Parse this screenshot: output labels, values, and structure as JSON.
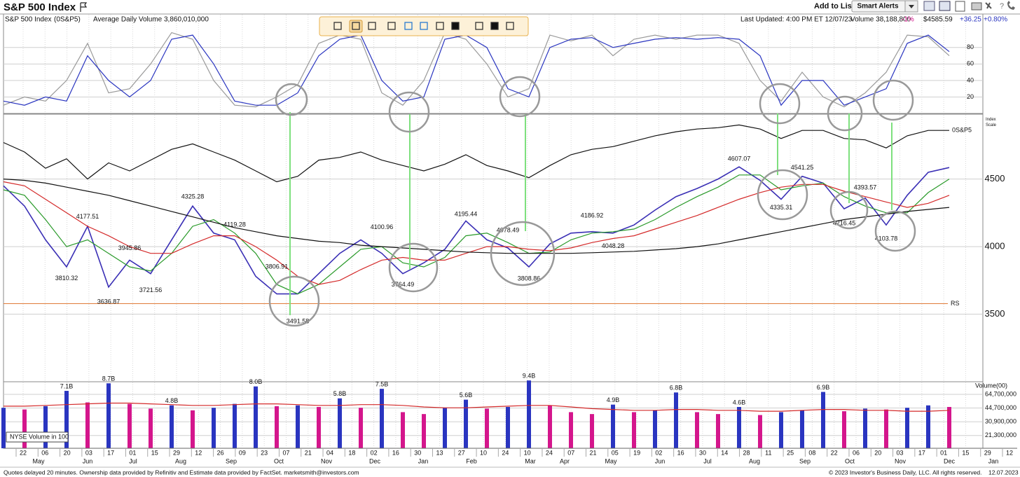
{
  "header": {
    "title": "S&P 500 Index",
    "add_to_list": "Add to List:",
    "button": "Smart Alerts"
  },
  "info_bar": {
    "symbol": "S&P 500 Index",
    "code": "(0S&P5)",
    "avg_volume": "Average Daily Volume 3,860,010,000",
    "updated": "Last Updated: 4:00 PM ET 12/07/23",
    "volume": "Volume 38,188,800",
    "pct_flag": "-1%",
    "price": "$4585.59",
    "change": "+36.25",
    "change_pct": "+0.80%"
  },
  "footer": {
    "left": "Quotes delayed 20 minutes. Ownership data provided by Refinitiv and Estimate data provided by FactSet. marketsmith@investors.com",
    "right": "© 2023 Investor's Business Daily, LLC. All rights reserved.",
    "date": "12.07.2023"
  },
  "x_axis": {
    "days": [
      "22",
      "06",
      "20",
      "03",
      "17",
      "01",
      "15",
      "29",
      "12",
      "26",
      "09",
      "23",
      "07",
      "21",
      "04",
      "18",
      "02",
      "16",
      "30",
      "13",
      "27",
      "10",
      "24",
      "10",
      "24",
      "07",
      "21",
      "05",
      "19",
      "02",
      "16",
      "30",
      "14",
      "28",
      "11",
      "25",
      "08",
      "22",
      "06",
      "20",
      "03",
      "17",
      "01",
      "15",
      "29",
      "12"
    ],
    "months": [
      "May",
      "Jun",
      "Jul",
      "Aug",
      "Sep",
      "Oct",
      "Nov",
      "Dec",
      "Jan",
      "Feb",
      "Mar",
      "Apr",
      "May",
      "Jun",
      "Jul",
      "Aug",
      "Sep",
      "Oct",
      "Nov",
      "Dec",
      "Jan"
    ]
  },
  "chart_data": [
    {
      "type": "line",
      "ylim": [
        0,
        107
      ],
      "yticks": [
        20,
        40,
        60,
        80
      ],
      "grid": true,
      "series": [
        {
          "color": "#9a9a9a",
          "values": [
            10,
            20,
            15,
            40,
            85,
            25,
            30,
            60,
            98,
            90,
            40,
            10,
            8,
            20,
            35,
            85,
            95,
            90,
            25,
            10,
            40,
            98,
            90,
            60,
            20,
            30,
            95,
            88,
            95,
            70,
            90,
            95,
            90,
            95,
            95,
            85,
            40,
            15,
            50,
            20,
            8,
            25,
            50,
            95,
            93,
            70
          ]
        },
        {
          "color": "#2a35c0",
          "values": [
            15,
            10,
            20,
            15,
            70,
            40,
            20,
            40,
            90,
            95,
            60,
            15,
            10,
            10,
            25,
            70,
            90,
            95,
            40,
            15,
            20,
            90,
            95,
            80,
            30,
            20,
            80,
            90,
            92,
            80,
            85,
            90,
            92,
            90,
            92,
            90,
            70,
            10,
            40,
            40,
            10,
            20,
            30,
            85,
            95,
            75
          ]
        }
      ]
    },
    {
      "type": "line",
      "ylim": [
        3000,
        4980
      ],
      "yticks": [
        3500,
        4000,
        4500
      ],
      "grid": true,
      "axis_label": "Index Scale",
      "series": [
        {
          "color": "#3a2fb5",
          "values": [
            4450,
            4300,
            4050,
            3850,
            4150,
            3700,
            3900,
            3800,
            4050,
            4300,
            4100,
            4050,
            3780,
            3650,
            3650,
            3800,
            3950,
            4050,
            3950,
            3800,
            3880,
            3980,
            4190,
            4050,
            3990,
            3850,
            4020,
            4100,
            4110,
            4100,
            4160,
            4270,
            4370,
            4430,
            4500,
            4590,
            4490,
            4350,
            4520,
            4470,
            4280,
            4360,
            4160,
            4380,
            4550,
            4585
          ]
        },
        {
          "color": "#2a9a2a",
          "values": [
            4420,
            4380,
            4200,
            4000,
            4050,
            3950,
            3850,
            3820,
            3950,
            4150,
            4200,
            4100,
            3950,
            3720,
            3650,
            3720,
            3850,
            3980,
            4000,
            3880,
            3850,
            3920,
            4080,
            4100,
            4030,
            3950,
            3960,
            4050,
            4100,
            4110,
            4130,
            4200,
            4290,
            4370,
            4440,
            4530,
            4530,
            4420,
            4450,
            4470,
            4370,
            4300,
            4250,
            4250,
            4400,
            4500
          ]
        },
        {
          "color": "#d42a2a",
          "values": [
            4480,
            4450,
            4350,
            4250,
            4150,
            4080,
            4000,
            3950,
            3950,
            4020,
            4080,
            4080,
            4000,
            3900,
            3780,
            3720,
            3750,
            3830,
            3900,
            3920,
            3900,
            3900,
            3950,
            4000,
            4000,
            3980,
            3970,
            3990,
            4030,
            4060,
            4080,
            4130,
            4180,
            4230,
            4290,
            4350,
            4400,
            4440,
            4460,
            4460,
            4410,
            4370,
            4330,
            4290,
            4320,
            4380
          ]
        },
        {
          "color": "#111111",
          "values": [
            4500,
            4490,
            4470,
            4440,
            4410,
            4380,
            4340,
            4300,
            4260,
            4220,
            4180,
            4140,
            4110,
            4080,
            4060,
            4040,
            4030,
            4010,
            4000,
            3990,
            3980,
            3970,
            3960,
            3955,
            3950,
            3950,
            3950,
            3950,
            3955,
            3960,
            3965,
            3975,
            3985,
            4000,
            4020,
            4050,
            4080,
            4110,
            4140,
            4170,
            4200,
            4220,
            4240,
            4260,
            4275,
            4290
          ]
        },
        {
          "name": "0S&P5",
          "color": "#111111",
          "values": [
            4770,
            4700,
            4580,
            4650,
            4500,
            4620,
            4560,
            4640,
            4720,
            4760,
            4700,
            4640,
            4560,
            4480,
            4520,
            4640,
            4660,
            4700,
            4640,
            4600,
            4560,
            4610,
            4680,
            4600,
            4560,
            4510,
            4600,
            4680,
            4720,
            4740,
            4780,
            4820,
            4850,
            4870,
            4880,
            4900,
            4870,
            4800,
            4860,
            4860,
            4800,
            4790,
            4730,
            4820,
            4860,
            4860
          ]
        }
      ],
      "reference_line": {
        "value": 3578,
        "label": "RS",
        "color": "#e07b39"
      },
      "annotations": [
        {
          "index": 4,
          "value": 4177.51
        },
        {
          "index": 6,
          "value": 3945.86
        },
        {
          "index": 3,
          "value": 3810.32
        },
        {
          "index": 5,
          "value": 3636.87
        },
        {
          "index": 7,
          "value": 3721.56
        },
        {
          "index": 9,
          "value": 4325.28
        },
        {
          "index": 11,
          "value": 4119.28
        },
        {
          "index": 13,
          "value": 3806.91
        },
        {
          "index": 14,
          "value": 3491.58
        },
        {
          "index": 18,
          "value": 4100.96
        },
        {
          "index": 19,
          "value": 3764.49
        },
        {
          "index": 22,
          "value": 4195.44
        },
        {
          "index": 24,
          "value": 4078.49
        },
        {
          "index": 25,
          "value": 3808.86
        },
        {
          "index": 28,
          "value": 4186.92
        },
        {
          "index": 29,
          "value": 4048.28
        },
        {
          "index": 35,
          "value": 4607.07
        },
        {
          "index": 38,
          "value": 4541.25
        },
        {
          "index": 37,
          "value": 4335.31
        },
        {
          "index": 41,
          "value": 4393.57
        },
        {
          "index": 40,
          "value": 4216.45
        },
        {
          "index": 42,
          "value": 4103.78
        }
      ]
    },
    {
      "type": "bar",
      "log": true,
      "ylim": [
        15100000,
        90800000
      ],
      "grid": true,
      "axis_label": "Volume(00)",
      "legend": "NYSE Volume in 100",
      "up_color": "#2a35c0",
      "down_color": "#d4168c",
      "yticks": [
        {
          "value": 64700000,
          "label": "64,700,000"
        },
        {
          "value": 44700000,
          "label": "44,700,000"
        },
        {
          "value": 30900000,
          "label": "30,900,000"
        },
        {
          "value": 21300000,
          "label": "21,300,000"
        }
      ],
      "values": [
        45000000,
        43000000,
        47000000,
        71000000,
        52000000,
        87000000,
        50000000,
        44000000,
        48000000,
        42000000,
        45000000,
        50000000,
        80000000,
        47000000,
        48000000,
        46000000,
        58000000,
        45000000,
        75000000,
        40000000,
        38000000,
        45000000,
        56000000,
        44000000,
        46000000,
        94000000,
        48000000,
        40000000,
        38000000,
        49000000,
        40000000,
        42000000,
        68000000,
        40000000,
        38000000,
        46000000,
        37000000,
        40000000,
        42000000,
        69000000,
        41000000,
        44000000,
        43000000,
        45000000,
        48000000,
        46000000
      ],
      "average": {
        "color": "#d42a2a",
        "values": [
          47000000,
          47000000,
          48000000,
          49000000,
          50000000,
          51000000,
          51000000,
          50000000,
          49000000,
          48000000,
          48000000,
          49000000,
          50000000,
          50000000,
          49000000,
          48000000,
          48000000,
          49000000,
          49000000,
          48000000,
          46000000,
          45000000,
          45000000,
          46000000,
          47000000,
          48000000,
          48000000,
          46000000,
          44000000,
          43000000,
          42000000,
          42000000,
          43000000,
          43000000,
          42000000,
          42000000,
          41000000,
          41000000,
          42000000,
          43000000,
          43000000,
          42000000,
          42000000,
          41000000,
          41000000,
          42000000
        ]
      },
      "annotations": [
        {
          "index": 3,
          "label": "7.1B"
        },
        {
          "index": 5,
          "label": "8.7B"
        },
        {
          "index": 8,
          "label": "4.8B"
        },
        {
          "index": 12,
          "label": "8.0B"
        },
        {
          "index": 16,
          "label": "5.8B"
        },
        {
          "index": 18,
          "label": "7.5B"
        },
        {
          "index": 22,
          "label": "5.6B"
        },
        {
          "index": 25,
          "label": "9.4B"
        },
        {
          "index": 29,
          "label": "4.9B"
        },
        {
          "index": 32,
          "label": "6.8B"
        },
        {
          "index": 35,
          "label": "4.6B"
        },
        {
          "index": 39,
          "label": "6.9B"
        }
      ]
    }
  ]
}
